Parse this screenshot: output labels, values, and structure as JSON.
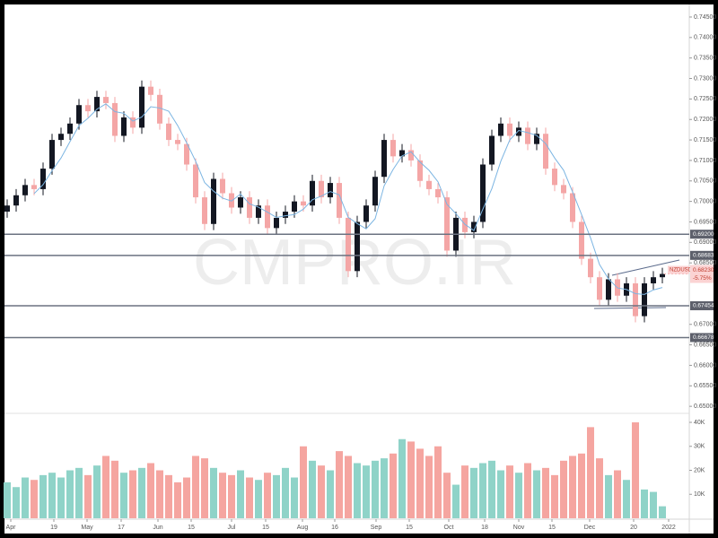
{
  "chart_data": [
    {
      "type": "candlestick",
      "watermark": "CMPRO.IR",
      "ylim": [
        0.6485,
        0.7474
      ],
      "yticks": [
        {
          "value": 0.745,
          "label": "0.74500"
        },
        {
          "value": 0.74,
          "label": "0.74000"
        },
        {
          "value": 0.735,
          "label": "0.73500"
        },
        {
          "value": 0.73,
          "label": "0.73000"
        },
        {
          "value": 0.725,
          "label": "0.72500"
        },
        {
          "value": 0.72,
          "label": "0.72000"
        },
        {
          "value": 0.715,
          "label": "0.71500"
        },
        {
          "value": 0.71,
          "label": "0.71000"
        },
        {
          "value": 0.705,
          "label": "0.70500"
        },
        {
          "value": 0.7,
          "label": "0.70000"
        },
        {
          "value": 0.695,
          "label": "0.69500"
        },
        {
          "value": 0.69,
          "label": "0.69000"
        },
        {
          "value": 0.685,
          "label": "0.68500"
        },
        {
          "value": 0.67,
          "label": "0.67000"
        },
        {
          "value": 0.665,
          "label": "0.66500"
        },
        {
          "value": 0.66,
          "label": "0.66000"
        },
        {
          "value": 0.655,
          "label": "0.65500"
        },
        {
          "value": 0.65,
          "label": "0.65000"
        }
      ],
      "up_color": "#131722",
      "down_color": "#f4a6a6",
      "ma_color": "#7cb5e2",
      "open": [
        0.6975,
        0.699,
        0.7015,
        0.704,
        0.703,
        0.708,
        0.715,
        0.7165,
        0.719,
        0.7235,
        0.722,
        0.7255,
        0.724,
        0.716,
        0.7205,
        0.718,
        0.728,
        0.726,
        0.719,
        0.715,
        0.714,
        0.709,
        0.701,
        0.6945,
        0.7055,
        0.702,
        0.6985,
        0.701,
        0.696,
        0.699,
        0.6935,
        0.696,
        0.6975,
        0.7,
        0.699,
        0.705,
        0.701,
        0.7045,
        0.696,
        0.683,
        0.695,
        0.699,
        0.706,
        0.715,
        0.711,
        0.7125,
        0.71,
        0.705,
        0.703,
        0.701,
        0.688,
        0.696,
        0.6925,
        0.695,
        0.709,
        0.716,
        0.719,
        0.716,
        0.718,
        0.714,
        0.7165,
        0.708,
        0.704,
        0.702,
        0.695,
        0.686,
        0.6815,
        0.676,
        0.681,
        0.677,
        0.68,
        0.672,
        0.68,
        0.6815
      ],
      "high": [
        0.7005,
        0.703,
        0.7055,
        0.7055,
        0.7095,
        0.7165,
        0.718,
        0.7205,
        0.725,
        0.725,
        0.727,
        0.727,
        0.7255,
        0.722,
        0.722,
        0.7295,
        0.7295,
        0.7275,
        0.7205,
        0.7165,
        0.7155,
        0.7105,
        0.7025,
        0.707,
        0.707,
        0.7035,
        0.7025,
        0.7025,
        0.7005,
        0.7005,
        0.6975,
        0.699,
        0.7015,
        0.7015,
        0.7065,
        0.7065,
        0.706,
        0.706,
        0.6975,
        0.6965,
        0.7005,
        0.7075,
        0.7165,
        0.7165,
        0.714,
        0.714,
        0.7115,
        0.7065,
        0.7045,
        0.7025,
        0.6975,
        0.6975,
        0.6965,
        0.7105,
        0.7175,
        0.7205,
        0.7205,
        0.7195,
        0.7195,
        0.718,
        0.718,
        0.7095,
        0.7055,
        0.7035,
        0.6965,
        0.6875,
        0.683,
        0.6825,
        0.6825,
        0.6815,
        0.6815,
        0.6815,
        0.683,
        0.6838
      ],
      "low": [
        0.696,
        0.6975,
        0.7,
        0.7015,
        0.7015,
        0.7065,
        0.7135,
        0.715,
        0.7175,
        0.7205,
        0.7205,
        0.7225,
        0.7145,
        0.7145,
        0.7165,
        0.7165,
        0.7245,
        0.7175,
        0.7135,
        0.7125,
        0.7075,
        0.6995,
        0.693,
        0.693,
        0.7005,
        0.697,
        0.697,
        0.6945,
        0.6945,
        0.692,
        0.692,
        0.6945,
        0.696,
        0.6975,
        0.6975,
        0.6995,
        0.6995,
        0.6945,
        0.6815,
        0.6815,
        0.6935,
        0.6975,
        0.7045,
        0.7095,
        0.7095,
        0.7085,
        0.7035,
        0.7015,
        0.6995,
        0.6865,
        0.6865,
        0.691,
        0.691,
        0.6935,
        0.7075,
        0.7145,
        0.7145,
        0.7145,
        0.7125,
        0.7125,
        0.7065,
        0.7025,
        0.7005,
        0.6935,
        0.6845,
        0.68,
        0.6745,
        0.6745,
        0.6755,
        0.6755,
        0.6705,
        0.6705,
        0.6785,
        0.68
      ],
      "close": [
        0.699,
        0.7015,
        0.704,
        0.703,
        0.708,
        0.715,
        0.7165,
        0.719,
        0.7235,
        0.722,
        0.7255,
        0.724,
        0.716,
        0.7205,
        0.718,
        0.728,
        0.726,
        0.719,
        0.715,
        0.714,
        0.709,
        0.701,
        0.6945,
        0.7055,
        0.702,
        0.6985,
        0.701,
        0.696,
        0.699,
        0.6935,
        0.696,
        0.6975,
        0.7,
        0.699,
        0.705,
        0.701,
        0.7045,
        0.696,
        0.683,
        0.695,
        0.699,
        0.706,
        0.715,
        0.711,
        0.7125,
        0.71,
        0.705,
        0.703,
        0.701,
        0.688,
        0.696,
        0.6925,
        0.695,
        0.709,
        0.716,
        0.719,
        0.716,
        0.718,
        0.714,
        0.7165,
        0.708,
        0.704,
        0.702,
        0.695,
        0.686,
        0.6815,
        0.676,
        0.681,
        0.677,
        0.68,
        0.672,
        0.68,
        0.6815,
        0.6823
      ],
      "ma": [
        null,
        null,
        null,
        0.7019,
        0.7041,
        0.7075,
        0.7106,
        0.7146,
        0.7185,
        0.7203,
        0.7225,
        0.7238,
        0.7219,
        0.7215,
        0.7196,
        0.7206,
        0.7231,
        0.7228,
        0.722,
        0.7185,
        0.7143,
        0.7098,
        0.7046,
        0.7025,
        0.7008,
        0.7001,
        0.7018,
        0.6994,
        0.6986,
        0.6974,
        0.6961,
        0.6965,
        0.6968,
        0.6981,
        0.7004,
        0.7013,
        0.7024,
        0.7016,
        0.6961,
        0.6946,
        0.6933,
        0.6958,
        0.7038,
        0.7078,
        0.7111,
        0.7121,
        0.7096,
        0.7076,
        0.7048,
        0.6993,
        0.697,
        0.6944,
        0.6929,
        0.6981,
        0.7031,
        0.7098,
        0.715,
        0.7173,
        0.7168,
        0.7161,
        0.7141,
        0.7106,
        0.7076,
        0.7023,
        0.6968,
        0.6911,
        0.6846,
        0.6811,
        0.6789,
        0.6785,
        0.6775,
        0.6773,
        0.6784,
        0.679
      ],
      "hlines": [
        {
          "value": 0.692,
          "label": "0.69200"
        },
        {
          "value": 0.68683,
          "label": "0.68683"
        },
        {
          "value": 0.67454,
          "label": "0.67454"
        },
        {
          "value": 0.66678,
          "label": "0.66678"
        }
      ],
      "last": {
        "symbol": "NZDUSD",
        "value": 0.6823,
        "label": "0.68230",
        "change": {
          "value": -5.75,
          "label": "-5.75%"
        }
      }
    },
    {
      "type": "bar",
      "ylim": [
        0,
        43000
      ],
      "yticks": [
        {
          "value": 10000,
          "label": "10K"
        },
        {
          "value": 20000,
          "label": "20K"
        },
        {
          "value": 30000,
          "label": "30K"
        },
        {
          "value": 40000,
          "label": "40K"
        }
      ],
      "up_color": "#8fd3c8",
      "down_color": "#f5a5a0",
      "values": [
        15000,
        13000,
        17000,
        16000,
        18000,
        19000,
        17000,
        20000,
        21000,
        18000,
        22000,
        26000,
        24000,
        19000,
        20000,
        21000,
        23000,
        20000,
        18000,
        15000,
        17000,
        26000,
        25000,
        21000,
        19000,
        18000,
        20000,
        17000,
        16000,
        19000,
        18000,
        21000,
        17000,
        30000,
        24000,
        22000,
        20000,
        28000,
        26000,
        23000,
        22000,
        24000,
        25000,
        27000,
        33000,
        32000,
        29000,
        26000,
        30000,
        19000,
        14000,
        22000,
        21000,
        23000,
        24000,
        20000,
        22000,
        19000,
        23000,
        20000,
        21000,
        18000,
        24000,
        26000,
        27000,
        38000,
        25000,
        18000,
        20000,
        16000,
        40000,
        12000,
        11000,
        5000
      ],
      "xticks": [
        {
          "value": 0.4,
          "label": "Apr"
        },
        {
          "value": 5.2,
          "label": "19"
        },
        {
          "value": 8.9,
          "label": "May"
        },
        {
          "value": 12.7,
          "label": "17"
        },
        {
          "value": 16.8,
          "label": "Jun"
        },
        {
          "value": 20.5,
          "label": "15"
        },
        {
          "value": 25,
          "label": "Jul"
        },
        {
          "value": 28.8,
          "label": "15"
        },
        {
          "value": 32.9,
          "label": "Aug"
        },
        {
          "value": 36.5,
          "label": "16"
        },
        {
          "value": 41.1,
          "label": "Sep"
        },
        {
          "value": 44.8,
          "label": "15"
        },
        {
          "value": 49.2,
          "label": "Oct"
        },
        {
          "value": 53.2,
          "label": "18"
        },
        {
          "value": 57,
          "label": "Nov"
        },
        {
          "value": 60.7,
          "label": "15"
        },
        {
          "value": 64.9,
          "label": "Dec"
        },
        {
          "value": 69.8,
          "label": "20"
        },
        {
          "value": 73.7,
          "label": "2022"
        }
      ]
    }
  ]
}
